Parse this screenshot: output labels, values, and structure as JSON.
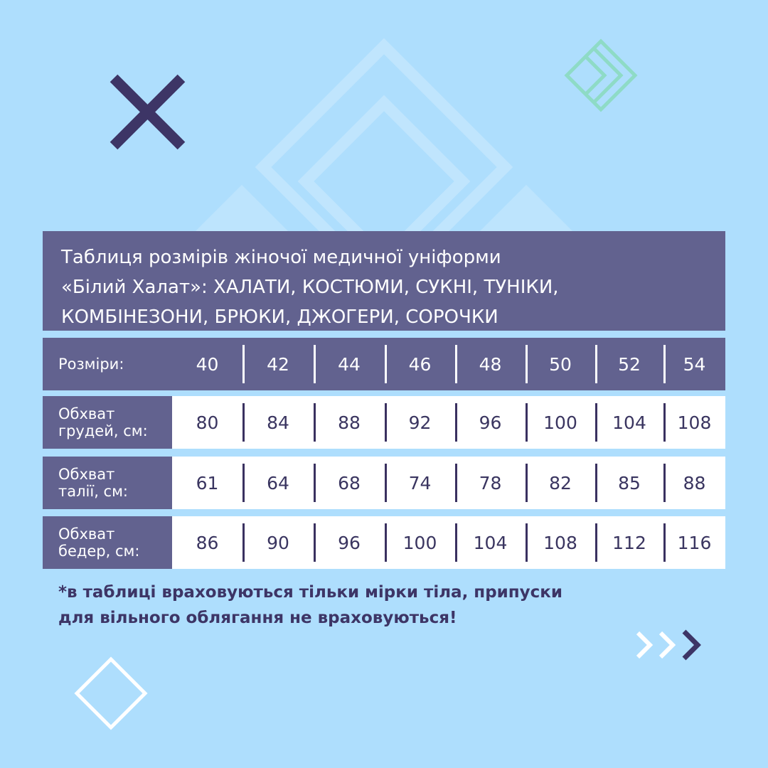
{
  "title": {
    "line1": "Таблиця розмірів жіночої медичної уніформи",
    "line2": "«Білий Халат»:  ХАЛАТИ, КОСТЮМИ, СУКНІ, ТУНІКИ,",
    "line3": "КОМБІНЕЗОНИ, БРЮКИ, ДЖОГЕРИ, СОРОЧКИ"
  },
  "table": {
    "header": {
      "label": "Розміри:",
      "values": [
        "40",
        "42",
        "44",
        "46",
        "48",
        "50",
        "52",
        "54"
      ]
    },
    "rows": [
      {
        "label1": "Обхват",
        "label2": "грудей, см:",
        "values": [
          "80",
          "84",
          "88",
          "92",
          "96",
          "100",
          "104",
          "108"
        ]
      },
      {
        "label1": "Обхват",
        "label2": "талії, см:",
        "values": [
          "61",
          "64",
          "68",
          "74",
          "78",
          "82",
          "85",
          "88"
        ]
      },
      {
        "label1": "Обхват",
        "label2": "бедер, см:",
        "values": [
          "86",
          "90",
          "96",
          "100",
          "104",
          "108",
          "112",
          "116"
        ]
      }
    ]
  },
  "footnote": {
    "line1": "*в таблиці враховуються тільки мірки тіла, припуски",
    "line2": "для вільного облягання не враховуються!"
  },
  "colors": {
    "background": "#aedefd",
    "table_dark": "#62628f",
    "accent_dark": "#3d3566",
    "accent_mint": "#8edbc6"
  },
  "icons": [
    "x-cross-icon",
    "mint-diamond-chevron-icon",
    "white-diamond-outline-icon",
    "chevrons-right-icon"
  ]
}
